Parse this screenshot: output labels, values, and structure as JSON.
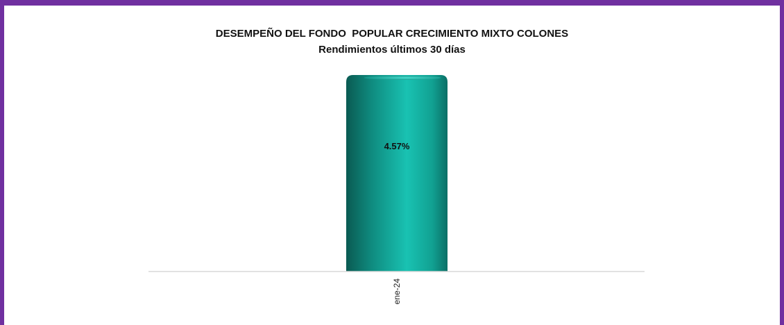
{
  "chart_data": {
    "type": "bar",
    "title": "DESEMPEÑO DEL FONDO  POPULAR CRECIMIENTO MIXTO COLONES",
    "subtitle": "Rendimientos últimos 30 días",
    "categories": [
      "ene-24"
    ],
    "values": [
      4.57
    ],
    "value_labels": [
      "4.57%"
    ],
    "xlabel": "",
    "ylabel": "",
    "ylim": [
      0,
      4.57
    ],
    "grid": false,
    "legend": "none",
    "bar_color": "#12a596",
    "frame_color": "#7030a0"
  }
}
